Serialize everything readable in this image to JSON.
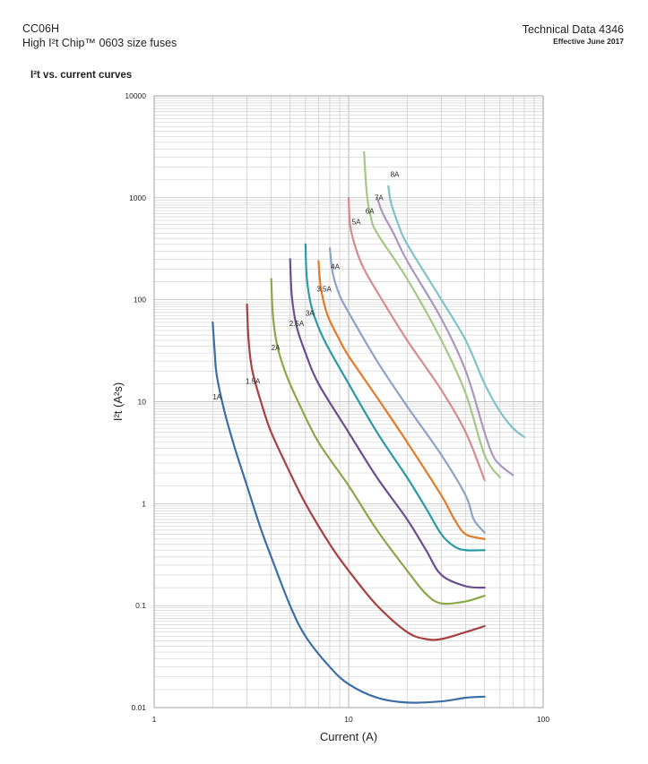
{
  "header": {
    "product_code": "CC06H",
    "product_name": "High I²t Chip™ 0603 size fuses",
    "doc_title": "Technical Data 4346",
    "effective": "Effective June 2017"
  },
  "section_title": "I²t vs. current curves",
  "chart_data": {
    "type": "line",
    "title": "",
    "xlabel": "Current (A)",
    "ylabel": "I²t (A²s)",
    "xscale": "log",
    "yscale": "log",
    "xlim": [
      1,
      100
    ],
    "ylim": [
      0.01,
      10000
    ],
    "xticks": [
      {
        "v": 1,
        "label": "1"
      },
      {
        "v": 10,
        "label": "10"
      },
      {
        "v": 100,
        "label": "100"
      }
    ],
    "yticks": [
      {
        "v": 10000,
        "label": "10000"
      },
      {
        "v": 1000,
        "label": "1000"
      },
      {
        "v": 100,
        "label": "100"
      },
      {
        "v": 10,
        "label": "10"
      },
      {
        "v": 1,
        "label": "1"
      },
      {
        "v": 0.1,
        "label": "0.1"
      },
      {
        "v": 0.01,
        "label": "0.01"
      }
    ],
    "grid": true,
    "series": [
      {
        "name": "1A",
        "color": "#3b6ea5",
        "label_at": [
          2.0,
          10.5
        ],
        "points": [
          [
            2.0,
            60
          ],
          [
            2.05,
            30
          ],
          [
            2.1,
            18
          ],
          [
            2.3,
            8
          ],
          [
            2.6,
            3.5
          ],
          [
            3,
            1.5
          ],
          [
            3.5,
            0.6
          ],
          [
            4,
            0.3
          ],
          [
            5,
            0.1
          ],
          [
            6,
            0.05
          ],
          [
            8,
            0.025
          ],
          [
            10,
            0.017
          ],
          [
            14,
            0.0125
          ],
          [
            20,
            0.0112
          ],
          [
            30,
            0.0115
          ],
          [
            40,
            0.0125
          ],
          [
            50,
            0.0128
          ]
        ]
      },
      {
        "name": "1.5A",
        "color": "#a8403f",
        "label_at": [
          2.95,
          15
        ],
        "points": [
          [
            3.0,
            90
          ],
          [
            3.06,
            40
          ],
          [
            3.2,
            20
          ],
          [
            3.6,
            9
          ],
          [
            4,
            5
          ],
          [
            5,
            2
          ],
          [
            6,
            1
          ],
          [
            8,
            0.4
          ],
          [
            10,
            0.22
          ],
          [
            14,
            0.1
          ],
          [
            20,
            0.055
          ],
          [
            25,
            0.047
          ],
          [
            30,
            0.047
          ],
          [
            40,
            0.055
          ],
          [
            50,
            0.063
          ]
        ]
      },
      {
        "name": "2A",
        "color": "#8aa84a",
        "label_at": [
          4.0,
          32
        ],
        "points": [
          [
            4.0,
            160
          ],
          [
            4.08,
            70
          ],
          [
            4.3,
            35
          ],
          [
            4.8,
            18
          ],
          [
            5.5,
            10
          ],
          [
            7,
            4
          ],
          [
            10,
            1.5
          ],
          [
            14,
            0.55
          ],
          [
            20,
            0.22
          ],
          [
            25,
            0.13
          ],
          [
            30,
            0.105
          ],
          [
            40,
            0.11
          ],
          [
            50,
            0.125
          ]
        ]
      },
      {
        "name": "2.5A",
        "color": "#6a4e8f",
        "label_at": [
          4.95,
          55
        ],
        "points": [
          [
            5.0,
            250
          ],
          [
            5.1,
            110
          ],
          [
            5.4,
            55
          ],
          [
            6,
            30
          ],
          [
            7,
            15
          ],
          [
            10,
            5
          ],
          [
            14,
            1.8
          ],
          [
            20,
            0.7
          ],
          [
            25,
            0.35
          ],
          [
            30,
            0.2
          ],
          [
            40,
            0.155
          ],
          [
            50,
            0.15
          ]
        ]
      },
      {
        "name": "3A",
        "color": "#2a9aa6",
        "label_at": [
          6.0,
          70
        ],
        "points": [
          [
            6.0,
            350
          ],
          [
            6.1,
            160
          ],
          [
            6.5,
            80
          ],
          [
            7.5,
            40
          ],
          [
            10,
            15
          ],
          [
            14,
            5
          ],
          [
            20,
            1.8
          ],
          [
            25,
            0.9
          ],
          [
            30,
            0.5
          ],
          [
            35,
            0.38
          ],
          [
            40,
            0.35
          ],
          [
            50,
            0.35
          ]
        ]
      },
      {
        "name": "3.5A",
        "color": "#e07b2a",
        "label_at": [
          6.85,
          120
        ],
        "points": [
          [
            7.0,
            240
          ],
          [
            7.2,
            130
          ],
          [
            7.8,
            70
          ],
          [
            9,
            40
          ],
          [
            10,
            28
          ],
          [
            14,
            11
          ],
          [
            20,
            4
          ],
          [
            30,
            1.2
          ],
          [
            35,
            0.7
          ],
          [
            40,
            0.5
          ],
          [
            50,
            0.45
          ]
        ]
      },
      {
        "name": "4A",
        "color": "#8ca3c8",
        "label_at": [
          8.1,
          200
        ],
        "points": [
          [
            8.0,
            320
          ],
          [
            8.3,
            180
          ],
          [
            9,
            110
          ],
          [
            10,
            75
          ],
          [
            14,
            25
          ],
          [
            20,
            9
          ],
          [
            30,
            3
          ],
          [
            40,
            1.2
          ],
          [
            44,
            0.7
          ],
          [
            50,
            0.52
          ]
        ]
      },
      {
        "name": "5A",
        "color": "#d98a8f",
        "label_at": [
          10.4,
          550
        ],
        "points": [
          [
            10.0,
            1000
          ],
          [
            10.2,
            520
          ],
          [
            11,
            300
          ],
          [
            12,
            200
          ],
          [
            14,
            120
          ],
          [
            20,
            40
          ],
          [
            30,
            13
          ],
          [
            40,
            5
          ],
          [
            50,
            1.7
          ]
        ]
      },
      {
        "name": "6A",
        "color": "#a5c886",
        "label_at": [
          12.2,
          700
        ],
        "points": [
          [
            12.0,
            2800
          ],
          [
            12.4,
            1100
          ],
          [
            13,
            650
          ],
          [
            14,
            450
          ],
          [
            20,
            160
          ],
          [
            30,
            40
          ],
          [
            40,
            12
          ],
          [
            50,
            3
          ],
          [
            60,
            1.8
          ]
        ]
      },
      {
        "name": "7A",
        "color": "#a898c0",
        "label_at": [
          13.6,
          950
        ],
        "points": [
          [
            14.0,
            1000
          ],
          [
            15,
            700
          ],
          [
            17,
            450
          ],
          [
            20,
            240
          ],
          [
            30,
            65
          ],
          [
            40,
            20
          ],
          [
            50,
            5
          ],
          [
            55,
            3
          ],
          [
            60,
            2.4
          ],
          [
            70,
            1.9
          ]
        ]
      },
      {
        "name": "8A",
        "color": "#7fc2cc",
        "label_at": [
          16.4,
          1600
        ],
        "points": [
          [
            16.0,
            1300
          ],
          [
            16.5,
            900
          ],
          [
            18,
            550
          ],
          [
            20,
            350
          ],
          [
            30,
            100
          ],
          [
            40,
            40
          ],
          [
            50,
            15
          ],
          [
            60,
            8
          ],
          [
            70,
            5.5
          ],
          [
            80,
            4.5
          ]
        ]
      }
    ]
  }
}
